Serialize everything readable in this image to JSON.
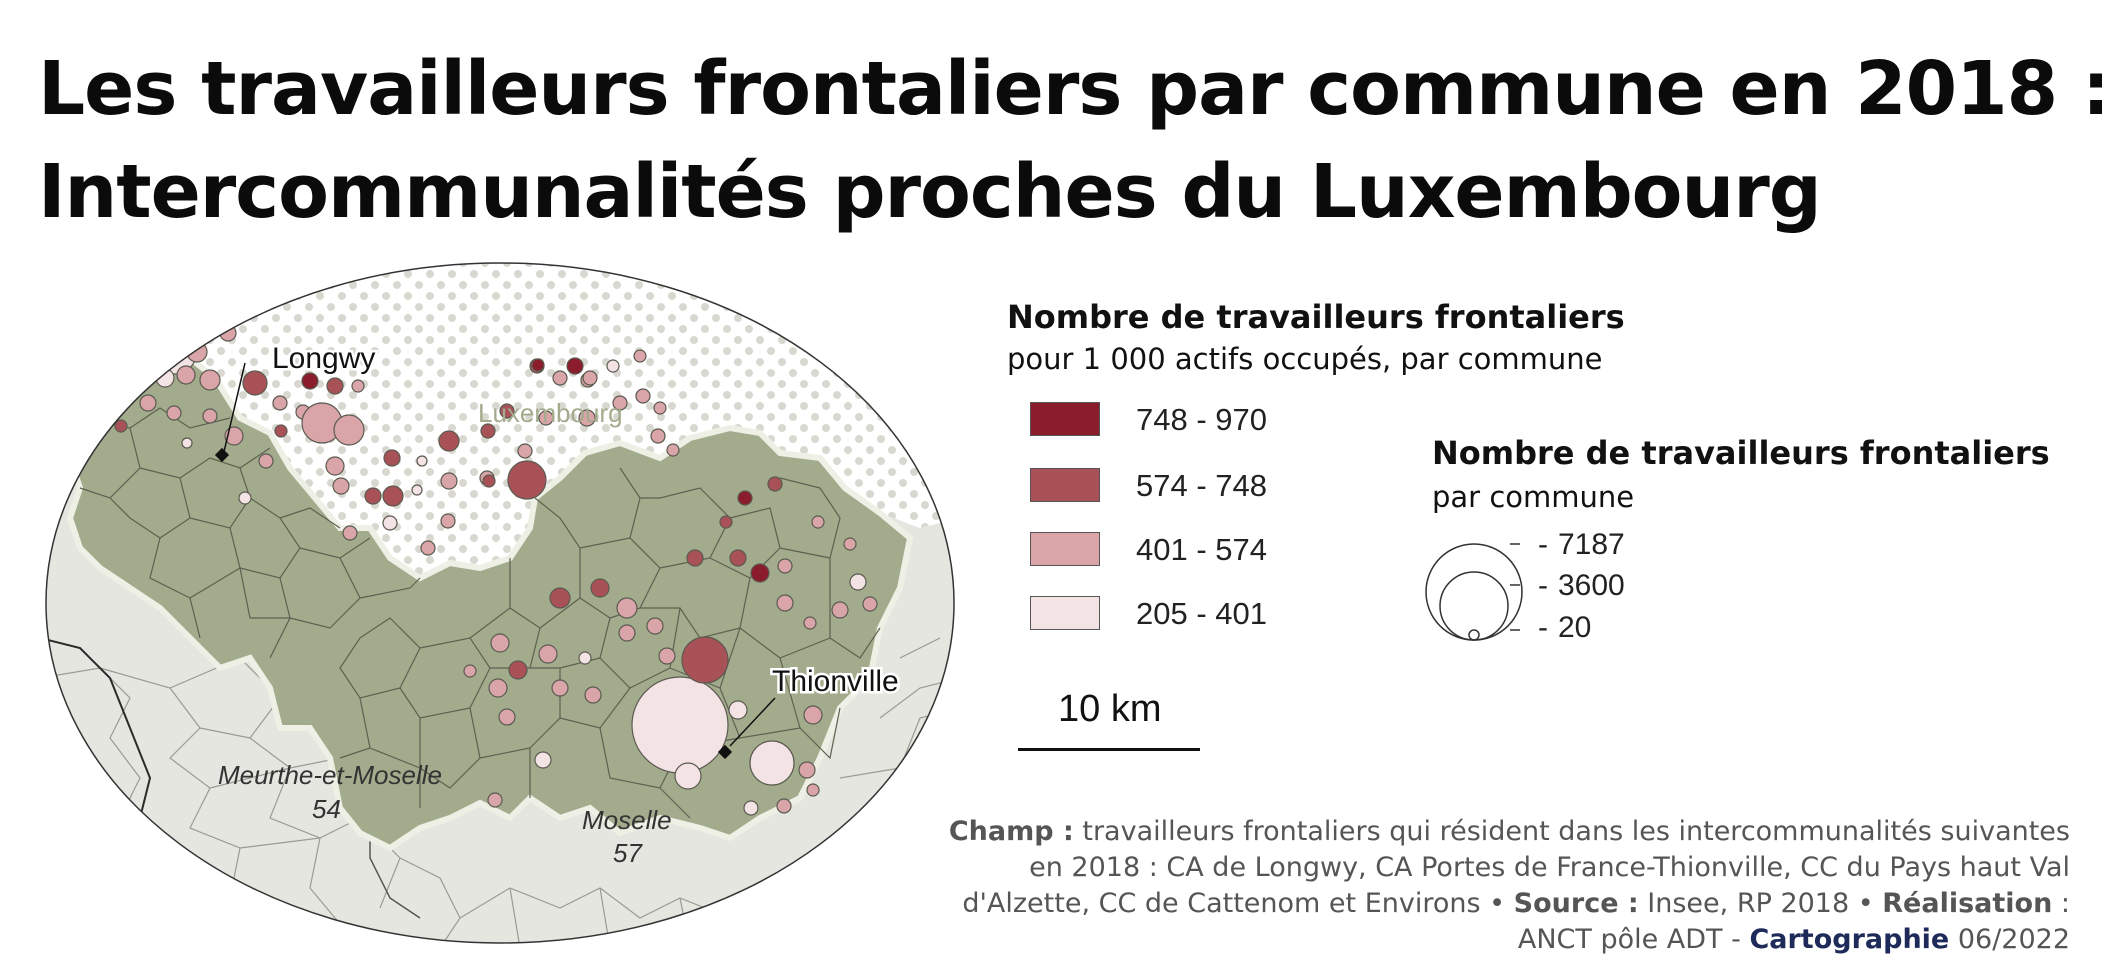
{
  "title": {
    "line1": "Les travailleurs frontaliers par commune en 2018 :",
    "line2": "Intercommunalités proches du Luxembourg"
  },
  "map": {
    "labels": {
      "longwy": "Longwy",
      "luxembourg": "Luxembourg",
      "thionville": "Thionville",
      "meurthe": "Meurthe-et-Moselle",
      "meurthe_code": "54",
      "moselle": "Moselle",
      "moselle_code": "57"
    },
    "colors": {
      "study_area": "#a3ab8d",
      "outside": "#e5e6df",
      "luxembourg_bg": "#ffffff",
      "luxembourg_dots": "#d9d8d0",
      "commune_border": "#5d614f"
    }
  },
  "legend_rate": {
    "title": "Nombre de travailleurs frontaliers",
    "subtitle": "pour 1 000 actifs occupés, par commune",
    "classes": [
      {
        "label": "748 - 970",
        "color": "#8a1c2b"
      },
      {
        "label": "574 - 748",
        "color": "#a85258"
      },
      {
        "label": "401 - 574",
        "color": "#d9a5a9"
      },
      {
        "label": "205 - 401",
        "color": "#f3e3e4"
      }
    ]
  },
  "legend_count": {
    "title": "Nombre de travailleurs frontaliers",
    "subtitle": "par commune",
    "values": [
      "7187",
      "3600",
      "20"
    ]
  },
  "scale": {
    "label": "10 km"
  },
  "footnote": {
    "champ_label": "Champ :",
    "champ_text": " travailleurs frontaliers qui résident dans les intercommunalités suivantes en 2018 : CA de Longwy, CA Portes de France-Thionville, CC du Pays haut Val d'Alzette, CC de Cattenom et Environs • ",
    "source_label": "Source :",
    "source_text": " Insee, RP 2018 • ",
    "realisation_label": "Réalisation",
    "realisation_text": " : ANCT pôle ADT - ",
    "carto_label": "Cartographie",
    "date": " 06/2022"
  }
}
